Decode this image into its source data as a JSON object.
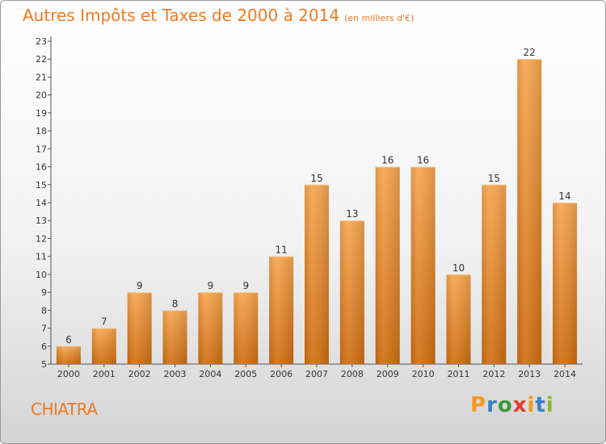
{
  "chart_data": {
    "type": "bar",
    "title": "Autres Impôts et Taxes de 2000 à 2014",
    "subtitle": "(en milliers d'€)",
    "categories": [
      "2000",
      "2001",
      "2002",
      "2003",
      "2004",
      "2005",
      "2006",
      "2007",
      "2008",
      "2009",
      "2010",
      "2011",
      "2012",
      "2013",
      "2014"
    ],
    "values": [
      6,
      7,
      9,
      8,
      9,
      9,
      11,
      15,
      13,
      16,
      16,
      10,
      15,
      22,
      14
    ],
    "ylim": [
      5,
      23
    ],
    "yticks": [
      5,
      6,
      7,
      8,
      9,
      10,
      11,
      12,
      13,
      14,
      15,
      16,
      17,
      18,
      19,
      20,
      21,
      22,
      23
    ],
    "grid": false,
    "bar_color": "#f0922e"
  },
  "footer": {
    "commune": "CHIATRA",
    "logo": [
      "P",
      "r",
      "o",
      "x",
      "i",
      "t",
      "i"
    ],
    "logo_colors": [
      "#f29a1f",
      "#3a7fc8",
      "#3a9a3a",
      "#e23b2e",
      "#f29a1f",
      "#3a7fc8",
      "#8ab935"
    ]
  }
}
